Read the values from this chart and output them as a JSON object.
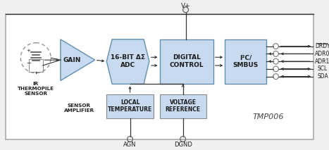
{
  "bg_color": "#f0f0f0",
  "outer_rect_color": "#ffffff",
  "outer_rect_edge": "#aaaaaa",
  "box_fill": "#c8daf0",
  "box_edge": "#6090b0",
  "white_box_edge": "#7aaa7a",
  "title": "TMP006",
  "vplus_label": "V+",
  "agn_label": "AGN",
  "dgnd_label": "DGND",
  "outputs": [
    "DRDY",
    "ADR0",
    "ADR1",
    "SCL",
    "SDA"
  ],
  "arrow_out": [
    true,
    false,
    false,
    false,
    false
  ],
  "arrow_in": [
    false,
    true,
    true,
    true,
    true
  ]
}
